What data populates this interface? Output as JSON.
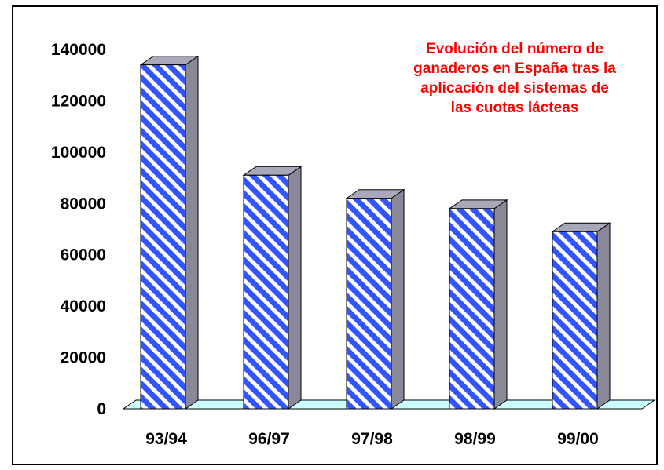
{
  "chart_data": {
    "type": "bar",
    "title_lines": [
      "Evolución del número de",
      "ganaderos en España tras la",
      "aplicación del sistemas de",
      "las cuotas lácteas"
    ],
    "categories": [
      "93/94",
      "96/97",
      "97/98",
      "98/99",
      "99/00"
    ],
    "values": [
      134000,
      91000,
      82000,
      78000,
      69000
    ],
    "ylim": [
      0,
      140000
    ],
    "yticks": [
      0,
      20000,
      40000,
      60000,
      80000,
      100000,
      120000,
      140000
    ],
    "xlabel": "",
    "ylabel": "",
    "legend": "none",
    "grid": false,
    "style": "3d-hatched"
  },
  "colors": {
    "bar_stripe_blue": "#3355ff",
    "bar_side_gray": "#888899",
    "bar_top_gray": "#a8a8b8",
    "floor_cyan": "#ccffff",
    "title_red": "#ff0000",
    "frame_black": "#000000"
  }
}
